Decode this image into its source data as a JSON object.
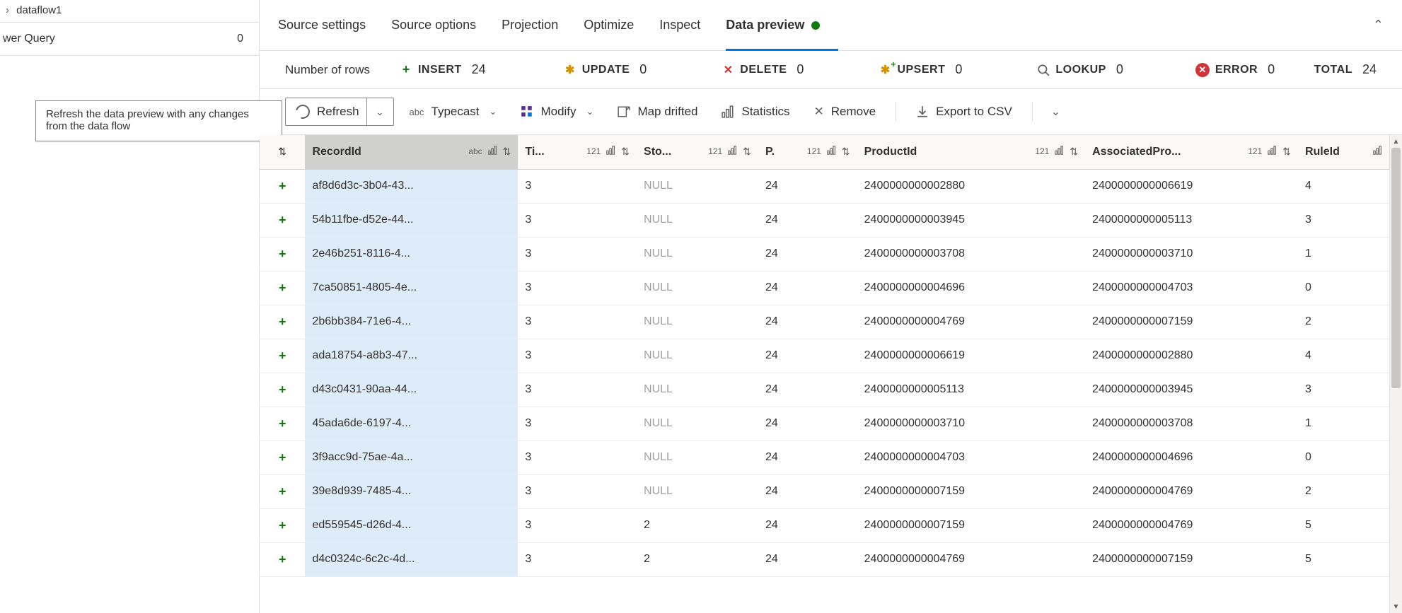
{
  "leftPane": {
    "title": "dataflow1",
    "subLabel": "wer Query",
    "subCount": "0",
    "tooltip": "Refresh the data preview with any changes from the data flow"
  },
  "tabs": {
    "items": [
      "Source settings",
      "Source options",
      "Projection",
      "Optimize",
      "Inspect",
      "Data preview"
    ],
    "activeIndex": 5
  },
  "stats": {
    "rowsLabel": "Number of rows",
    "insert": {
      "label": "INSERT",
      "value": "24"
    },
    "update": {
      "label": "UPDATE",
      "value": "0"
    },
    "delete": {
      "label": "DELETE",
      "value": "0"
    },
    "upsert": {
      "label": "UPSERT",
      "value": "0"
    },
    "lookup": {
      "label": "LOOKUP",
      "value": "0"
    },
    "error": {
      "label": "ERROR",
      "value": "0"
    },
    "total": {
      "label": "TOTAL",
      "value": "24"
    }
  },
  "toolbar": {
    "refresh": "Refresh",
    "typecast": "Typecast",
    "modify": "Modify",
    "mapDrifted": "Map drifted",
    "statistics": "Statistics",
    "remove": "Remove",
    "export": "Export to CSV"
  },
  "columns": [
    {
      "key": "rowop",
      "title": "",
      "type": "",
      "width": "col-rowop"
    },
    {
      "key": "RecordId",
      "title": "RecordId",
      "type": "abc",
      "width": "col-record"
    },
    {
      "key": "Ti",
      "title": "Ti...",
      "type": "121",
      "width": "col-ti"
    },
    {
      "key": "Sto",
      "title": "Sto...",
      "type": "121",
      "width": "col-sto"
    },
    {
      "key": "P",
      "title": "P.",
      "type": "121",
      "width": "col-p"
    },
    {
      "key": "ProductId",
      "title": "ProductId",
      "type": "121",
      "width": "col-prod"
    },
    {
      "key": "AssociatedPro",
      "title": "AssociatedPro...",
      "type": "121",
      "width": "col-assoc"
    },
    {
      "key": "RuleId",
      "title": "RuleId",
      "type": "",
      "width": "col-rule"
    }
  ],
  "rows": [
    {
      "RecordId": "af8d6d3c-3b04-43...",
      "Ti": "3",
      "Sto": "NULL",
      "P": "24",
      "ProductId": "2400000000002880",
      "AssociatedPro": "2400000000006619",
      "RuleId": "4"
    },
    {
      "RecordId": "54b11fbe-d52e-44...",
      "Ti": "3",
      "Sto": "NULL",
      "P": "24",
      "ProductId": "2400000000003945",
      "AssociatedPro": "2400000000005113",
      "RuleId": "3"
    },
    {
      "RecordId": "2e46b251-8116-4...",
      "Ti": "3",
      "Sto": "NULL",
      "P": "24",
      "ProductId": "2400000000003708",
      "AssociatedPro": "2400000000003710",
      "RuleId": "1"
    },
    {
      "RecordId": "7ca50851-4805-4e...",
      "Ti": "3",
      "Sto": "NULL",
      "P": "24",
      "ProductId": "2400000000004696",
      "AssociatedPro": "2400000000004703",
      "RuleId": "0"
    },
    {
      "RecordId": "2b6bb384-71e6-4...",
      "Ti": "3",
      "Sto": "NULL",
      "P": "24",
      "ProductId": "2400000000004769",
      "AssociatedPro": "2400000000007159",
      "RuleId": "2"
    },
    {
      "RecordId": "ada18754-a8b3-47...",
      "Ti": "3",
      "Sto": "NULL",
      "P": "24",
      "ProductId": "2400000000006619",
      "AssociatedPro": "2400000000002880",
      "RuleId": "4"
    },
    {
      "RecordId": "d43c0431-90aa-44...",
      "Ti": "3",
      "Sto": "NULL",
      "P": "24",
      "ProductId": "2400000000005113",
      "AssociatedPro": "2400000000003945",
      "RuleId": "3"
    },
    {
      "RecordId": "45ada6de-6197-4...",
      "Ti": "3",
      "Sto": "NULL",
      "P": "24",
      "ProductId": "2400000000003710",
      "AssociatedPro": "2400000000003708",
      "RuleId": "1"
    },
    {
      "RecordId": "3f9acc9d-75ae-4a...",
      "Ti": "3",
      "Sto": "NULL",
      "P": "24",
      "ProductId": "2400000000004703",
      "AssociatedPro": "2400000000004696",
      "RuleId": "0"
    },
    {
      "RecordId": "39e8d939-7485-4...",
      "Ti": "3",
      "Sto": "NULL",
      "P": "24",
      "ProductId": "2400000000007159",
      "AssociatedPro": "2400000000004769",
      "RuleId": "2"
    },
    {
      "RecordId": "ed559545-d26d-4...",
      "Ti": "3",
      "Sto": "2",
      "P": "24",
      "ProductId": "2400000000007159",
      "AssociatedPro": "2400000000004769",
      "RuleId": "5"
    },
    {
      "RecordId": "d4c0324c-6c2c-4d...",
      "Ti": "3",
      "Sto": "2",
      "P": "24",
      "ProductId": "2400000000004769",
      "AssociatedPro": "2400000000007159",
      "RuleId": "5"
    }
  ],
  "colors": {
    "accent": "#0078d4",
    "green": "#107c10",
    "red": "#d13438",
    "amber": "#d29200",
    "border": "#e1dfdd",
    "headerBg": "#faf9f8",
    "selectedColBg": "#deecf9"
  }
}
